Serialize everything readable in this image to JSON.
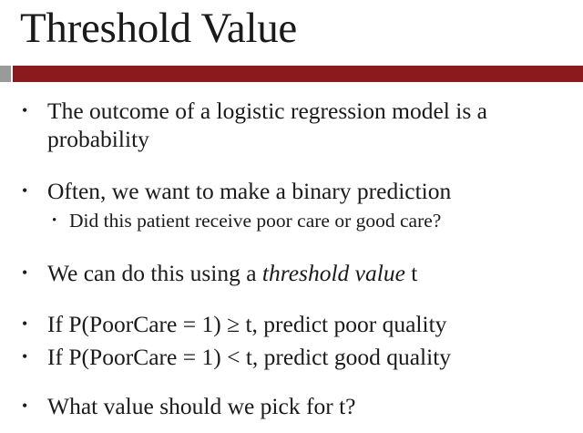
{
  "slide": {
    "title": "Threshold Value",
    "accent_color": "#8b1a1e",
    "bullets": [
      "The outcome of a logistic regression model is a probability",
      "Often, we want to make a binary prediction",
      "Did this patient receive poor care or good care?",
      "We can do this using a ",
      "threshold value",
      " t",
      "If  P(PoorCare = 1) ≥ t, predict poor quality",
      "If  P(PoorCare = 1) < t, predict good quality",
      "What value should we pick for t?"
    ]
  }
}
